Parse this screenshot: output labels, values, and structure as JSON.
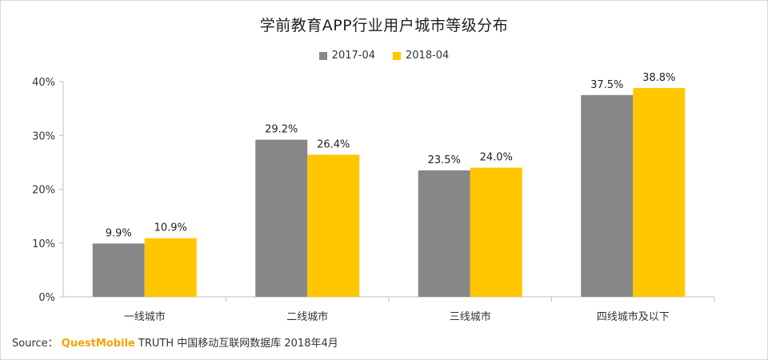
{
  "colors": {
    "series1": "#878787",
    "series2": "#ffc700",
    "axis": "#bfbfbf"
  },
  "chart_data": {
    "type": "bar",
    "title": "学前教育APP行业用户城市等级分布",
    "categories": [
      "一线城市",
      "二线城市",
      "三线城市",
      "四线城市及以下"
    ],
    "series": [
      {
        "name": "2017-04",
        "values": [
          9.9,
          29.2,
          23.5,
          37.5
        ],
        "labels": [
          "9.9%",
          "29.2%",
          "23.5%",
          "37.5%"
        ]
      },
      {
        "name": "2018-04",
        "values": [
          10.9,
          26.4,
          24.0,
          38.8
        ],
        "labels": [
          "10.9%",
          "26.4%",
          "24.0%",
          "38.8%"
        ]
      }
    ],
    "ylim": [
      0,
      40
    ],
    "yticks": [
      0,
      10,
      20,
      30,
      40
    ],
    "ytick_labels": [
      "0%",
      "10%",
      "20%",
      "30%",
      "40%"
    ],
    "grid": false,
    "legend": "top-center"
  },
  "source": {
    "prefix": "Source：",
    "brand": "QuestMobile",
    "text": "TRUTH 中国移动互联网数据库 2018年4月"
  }
}
